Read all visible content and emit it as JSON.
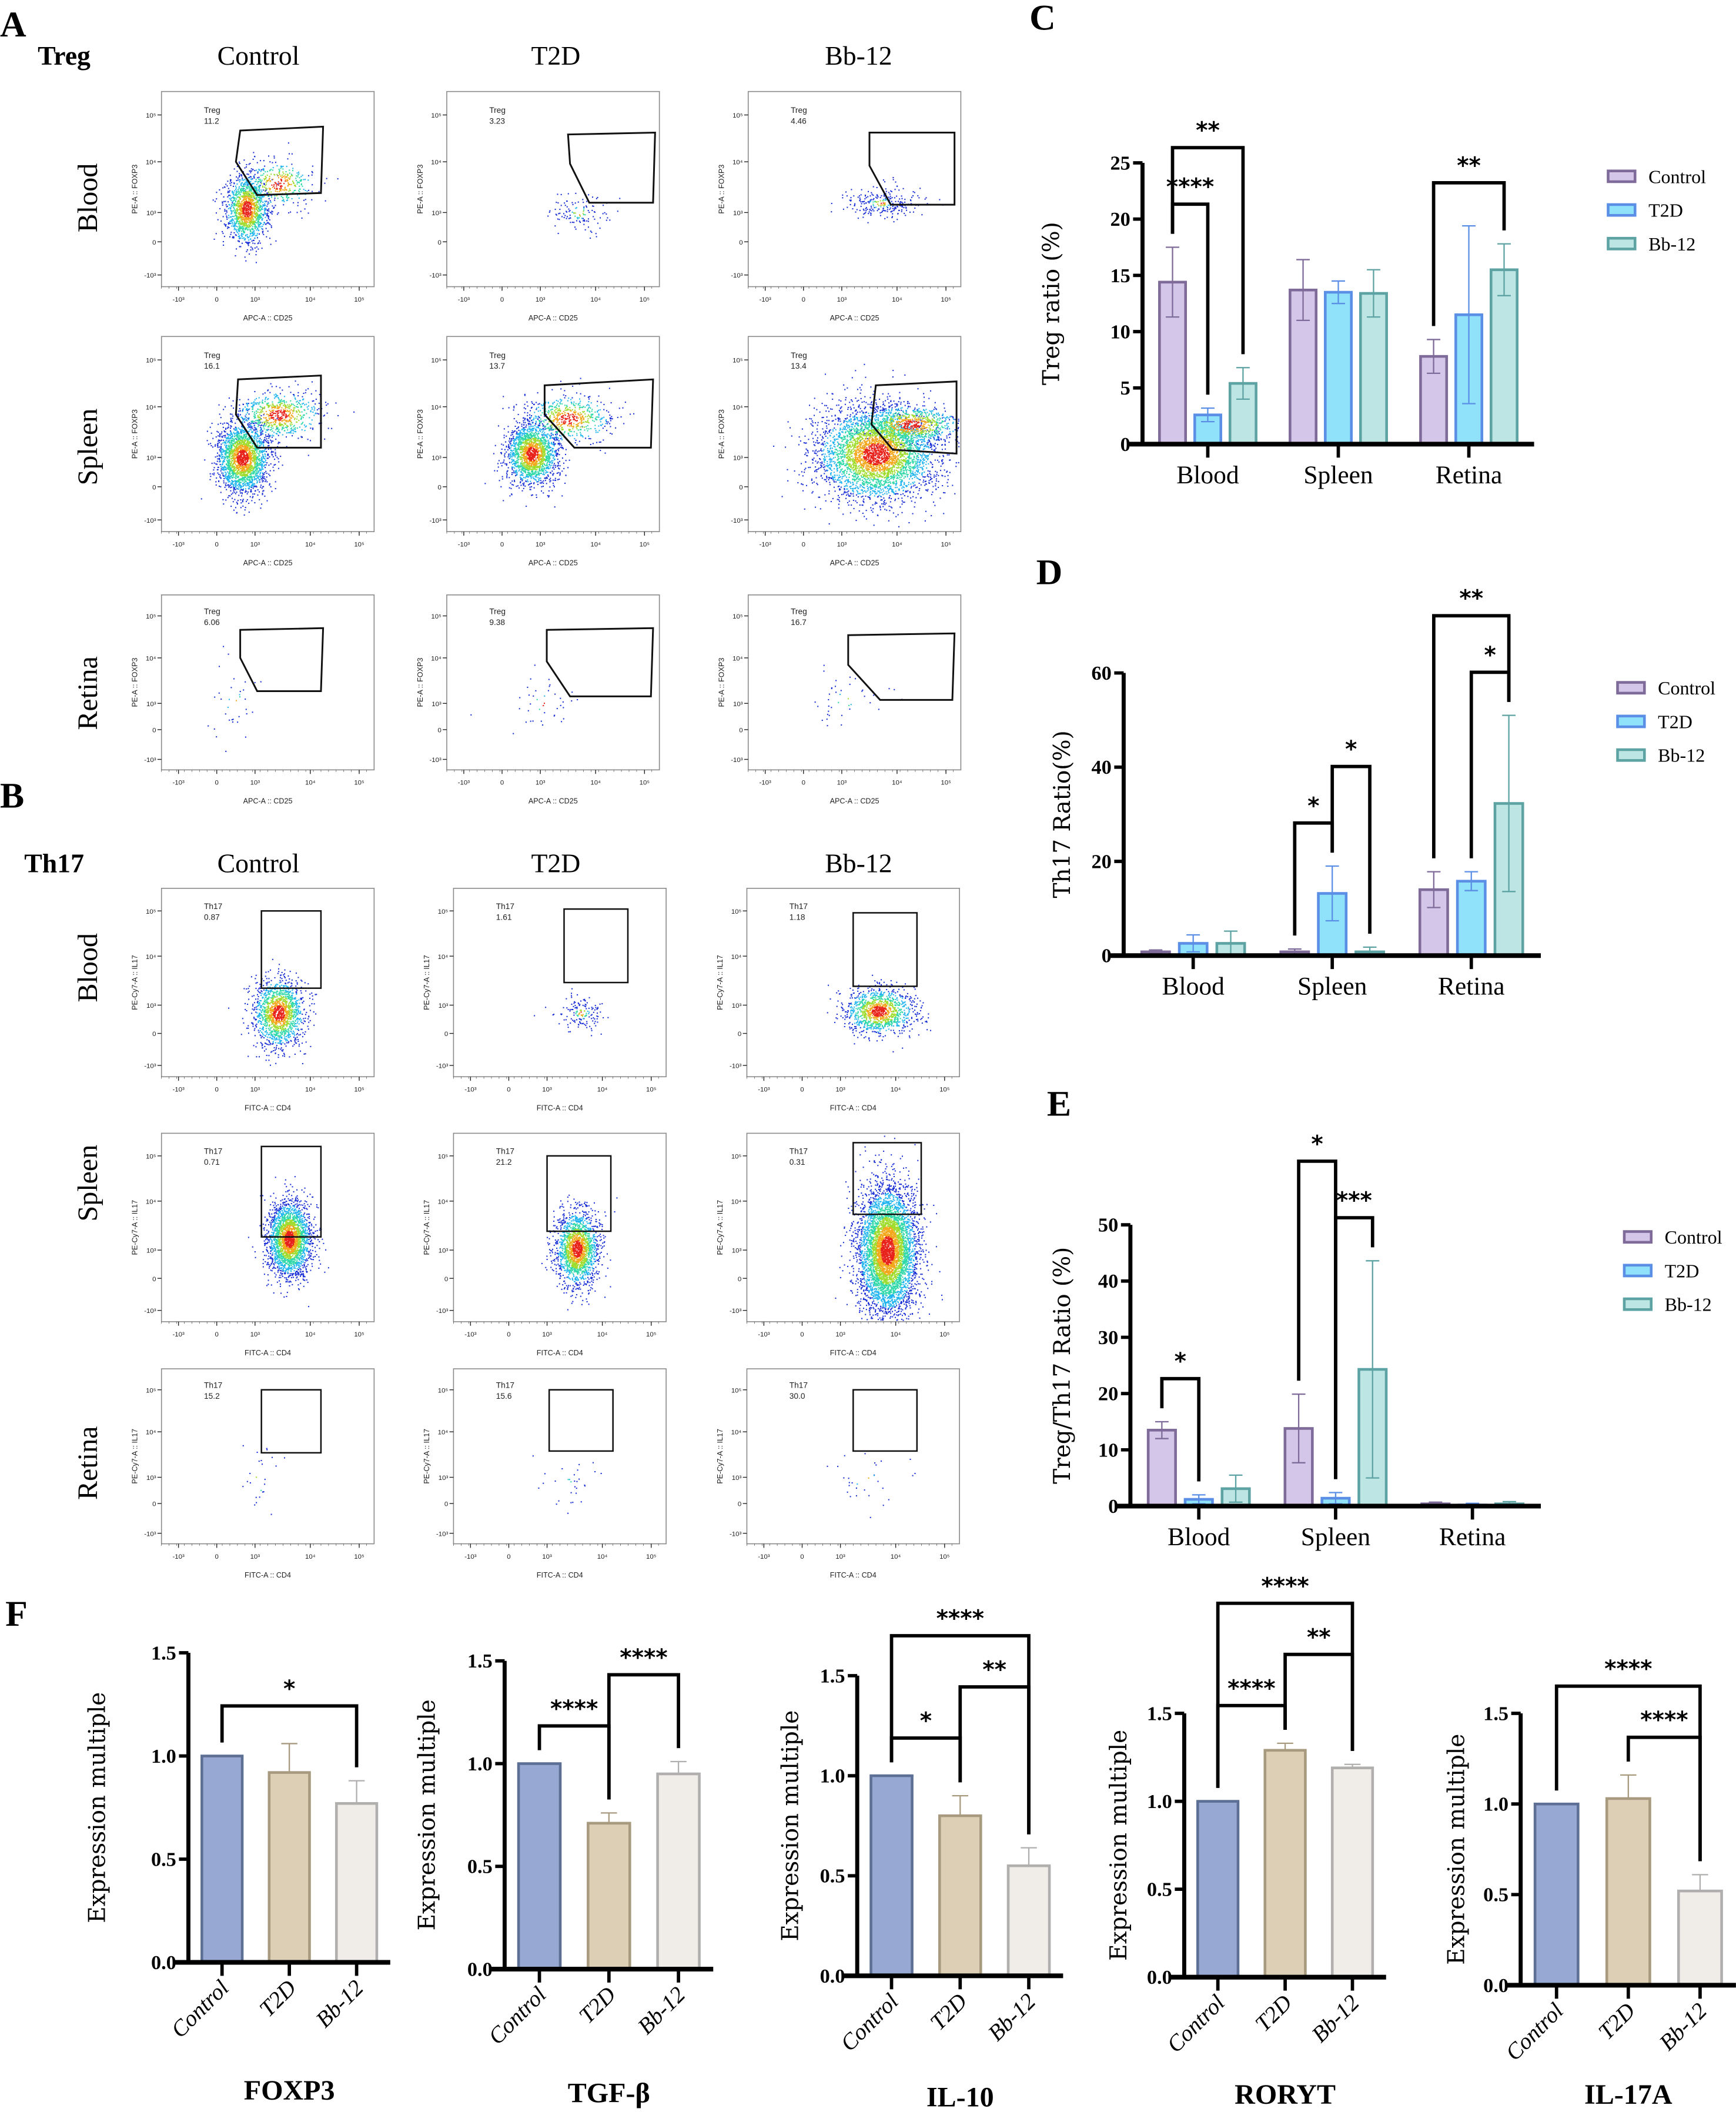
{
  "panel_letters": [
    "A",
    "B",
    "C",
    "D",
    "E",
    "F"
  ],
  "legend": [
    "Control",
    "T2D",
    "Bb-12"
  ],
  "colors": {
    "control_fill": "#d4c6e8",
    "control_stroke": "#7e6b99",
    "t2d_fill": "#8fe2fa",
    "t2d_stroke": "#5b8fe6",
    "bb12_fill": "#bde5e4",
    "bb12_stroke": "#5ea3a3",
    "f_control_fill": "#97a9d2",
    "f_control_stroke": "#5d6f94",
    "f_t2d_fill": "#dccfb5",
    "f_t2d_stroke": "#a89a7e",
    "f_bb12_fill": "#f0ede8",
    "f_bb12_stroke": "#b0afae"
  },
  "flow": {
    "xticks": [
      "-10³",
      "0",
      "10³",
      "10⁴",
      "10⁵"
    ],
    "yticks": [
      "10⁵",
      "10⁴",
      "10³",
      "0",
      "-10³"
    ],
    "treg": {
      "title": "Treg",
      "columns": [
        "Control",
        "T2D",
        "Bb-12"
      ],
      "rows": [
        "Blood",
        "Spleen",
        "Retina"
      ],
      "gate_name": "Treg",
      "values": [
        [
          "11.2",
          "3.23",
          "4.46"
        ],
        [
          "16.1",
          "13.7",
          "13.4"
        ],
        [
          "6.06",
          "9.38",
          "16.7"
        ]
      ],
      "x_axis": "APC-A :: CD25",
      "y_axis": "PE-A :: FOXP3"
    },
    "th17": {
      "title": "Th17",
      "columns": [
        "Control",
        "T2D",
        "Bb-12"
      ],
      "rows": [
        "Blood",
        "Spleen",
        "Retina"
      ],
      "gate_name": "Th17",
      "values": [
        [
          "0.87",
          "1.61",
          "1.18"
        ],
        [
          "0.71",
          "21.2",
          "0.31"
        ],
        [
          "15.2",
          "15.6",
          "30.0"
        ]
      ],
      "x_axis": "FITC-A :: CD4",
      "y_axis": "PE-Cy7-A :: IL17"
    }
  },
  "chart_data": [
    {
      "id": "C",
      "type": "bar",
      "ylabel": "Treg ratio (%)",
      "ylim": [
        0,
        25
      ],
      "yticks": [
        0,
        5,
        10,
        15,
        20,
        25
      ],
      "categories": [
        "Blood",
        "Spleen",
        "Retina"
      ],
      "legend_position": "right",
      "series": [
        {
          "name": "Control",
          "values": [
            14.4,
            13.7,
            7.8
          ],
          "errors": [
            3.1,
            2.7,
            1.5
          ]
        },
        {
          "name": "T2D",
          "values": [
            2.6,
            13.5,
            11.5
          ],
          "errors": [
            0.6,
            1.0,
            7.9
          ]
        },
        {
          "name": "Bb-12",
          "values": [
            5.4,
            13.4,
            15.5
          ],
          "errors": [
            1.4,
            2.1,
            2.3
          ]
        }
      ],
      "significance": [
        {
          "category": 0,
          "between": [
            0,
            1
          ],
          "label": "****"
        },
        {
          "category": 0,
          "between": [
            0,
            2
          ],
          "label": "**"
        },
        {
          "category": 2,
          "between": [
            0,
            2
          ],
          "label": "**"
        }
      ]
    },
    {
      "id": "D",
      "type": "bar",
      "ylabel": "Th17 Ratio(%)",
      "ylim": [
        0,
        60
      ],
      "yticks": [
        0,
        20,
        40,
        60
      ],
      "categories": [
        "Blood",
        "Spleen",
        "Retina"
      ],
      "legend_position": "right",
      "series": [
        {
          "name": "Control",
          "values": [
            0.8,
            0.8,
            14.0
          ],
          "errors": [
            0.4,
            0.6,
            3.8
          ]
        },
        {
          "name": "T2D",
          "values": [
            2.6,
            13.2,
            15.8
          ],
          "errors": [
            1.8,
            5.8,
            2.0
          ]
        },
        {
          "name": "Bb-12",
          "values": [
            2.6,
            0.8,
            32.3
          ],
          "errors": [
            2.6,
            1.0,
            18.7
          ]
        }
      ],
      "significance": [
        {
          "category": 1,
          "between": [
            0,
            1
          ],
          "label": "*"
        },
        {
          "category": 1,
          "between": [
            1,
            2
          ],
          "label": "*"
        },
        {
          "category": 2,
          "between": [
            1,
            2
          ],
          "label": "*"
        },
        {
          "category": 2,
          "between": [
            0,
            2
          ],
          "label": "**"
        }
      ]
    },
    {
      "id": "E",
      "type": "bar",
      "ylabel": "Treg/Th17 Ratio (%)",
      "ylim": [
        0,
        50
      ],
      "yticks": [
        0,
        10,
        20,
        30,
        40,
        50
      ],
      "categories": [
        "Blood",
        "Spleen",
        "Retina"
      ],
      "legend_position": "right",
      "series": [
        {
          "name": "Control",
          "values": [
            13.5,
            13.8,
            0.4
          ],
          "errors": [
            1.5,
            6.1,
            0.3
          ]
        },
        {
          "name": "T2D",
          "values": [
            1.2,
            1.4,
            0.2
          ],
          "errors": [
            0.8,
            1.0,
            0.3
          ]
        },
        {
          "name": "Bb-12",
          "values": [
            3.1,
            24.3,
            0.4
          ],
          "errors": [
            2.4,
            19.3,
            0.4
          ]
        }
      ],
      "significance": [
        {
          "category": 0,
          "between": [
            0,
            1
          ],
          "label": "*"
        },
        {
          "category": 1,
          "between": [
            1,
            2
          ],
          "label": "***"
        },
        {
          "category": 1,
          "between": [
            0,
            1
          ],
          "label": "*"
        }
      ]
    },
    {
      "id": "F1",
      "type": "bar",
      "title": "FOXP3",
      "ylabel": "Expression multiple",
      "ylim": [
        0,
        1.5
      ],
      "yticks": [
        "0.0",
        "0.5",
        "1.0",
        "1.5"
      ],
      "categories": [
        "Control",
        "T2D",
        "Bb-12"
      ],
      "values": [
        1.0,
        0.92,
        0.77
      ],
      "errors": [
        0,
        0.14,
        0.11
      ],
      "significance": [
        {
          "between": [
            0,
            2
          ],
          "label": "*"
        }
      ]
    },
    {
      "id": "F2",
      "type": "bar",
      "title": "TGF-β",
      "ylabel": "Expression multiple",
      "ylim": [
        0,
        1.5
      ],
      "yticks": [
        "0.0",
        "0.5",
        "1.0",
        "1.5"
      ],
      "categories": [
        "Control",
        "T2D",
        "Bb-12"
      ],
      "values": [
        1.0,
        0.71,
        0.95
      ],
      "errors": [
        0,
        0.05,
        0.06
      ],
      "significance": [
        {
          "between": [
            0,
            1
          ],
          "label": "****"
        },
        {
          "between": [
            1,
            2
          ],
          "label": "****"
        }
      ]
    },
    {
      "id": "F3",
      "type": "bar",
      "title": "IL-10",
      "ylabel": "Expression multiple",
      "ylim": [
        0,
        1.5
      ],
      "yticks": [
        "0.0",
        "0.5",
        "1.0",
        "1.5"
      ],
      "categories": [
        "Control",
        "T2D",
        "Bb-12"
      ],
      "values": [
        1.0,
        0.8,
        0.55
      ],
      "errors": [
        0,
        0.1,
        0.09
      ],
      "significance": [
        {
          "between": [
            0,
            1
          ],
          "label": "*"
        },
        {
          "between": [
            1,
            2
          ],
          "label": "**"
        },
        {
          "between": [
            0,
            2
          ],
          "label": "****"
        }
      ]
    },
    {
      "id": "F4",
      "type": "bar",
      "title": "RORYT",
      "ylabel": "Expression multiple",
      "ylim": [
        0,
        1.5
      ],
      "yticks": [
        "0.0",
        "0.5",
        "1.0",
        "1.5"
      ],
      "categories": [
        "Control",
        "T2D",
        "Bb-12"
      ],
      "values": [
        1.0,
        1.29,
        1.19
      ],
      "errors": [
        0,
        0.04,
        0.02
      ],
      "significance": [
        {
          "between": [
            0,
            1
          ],
          "label": "****"
        },
        {
          "between": [
            1,
            2
          ],
          "label": "**"
        },
        {
          "between": [
            0,
            2
          ],
          "label": "****"
        }
      ]
    },
    {
      "id": "F5",
      "type": "bar",
      "title": "IL-17A",
      "ylabel": "Expression multiple",
      "ylim": [
        0,
        1.5
      ],
      "yticks": [
        "0.0",
        "0.5",
        "1.0",
        "1.5"
      ],
      "categories": [
        "Control",
        "T2D",
        "Bb-12"
      ],
      "values": [
        1.0,
        1.03,
        0.52
      ],
      "errors": [
        0,
        0.13,
        0.09
      ],
      "significance": [
        {
          "between": [
            1,
            2
          ],
          "label": "****"
        },
        {
          "between": [
            0,
            2
          ],
          "label": "****"
        }
      ]
    }
  ]
}
